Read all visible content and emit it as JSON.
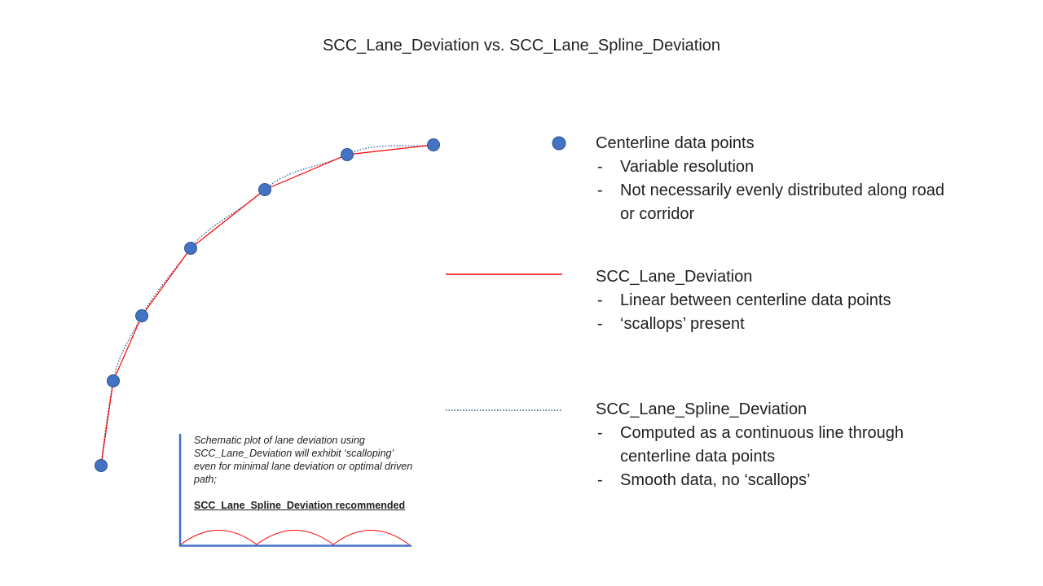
{
  "title": "SCC_Lane_Deviation vs. SCC_Lane_Spline_Deviation",
  "legend": {
    "points": {
      "heading": "Centerline data points",
      "bullets": [
        "Variable resolution",
        "Not necessarily evenly distributed along road or corridor"
      ]
    },
    "linear": {
      "heading": "SCC_Lane_Deviation",
      "bullets": [
        "Linear between centerline data points",
        "‘scallops’ present"
      ]
    },
    "spline": {
      "heading": "SCC_Lane_Spline_Deviation",
      "bullets": [
        "Computed as a continuous line through centerline data points",
        "Smooth data, no ‘scallops’"
      ]
    }
  },
  "note": {
    "body": "Schematic plot of lane deviation using SCC_Lane_Deviation will exhibit ‘scalloping’ even for minimal lane deviation or optimal driven path;",
    "recommendation": "SCC_Lane_Spline_Deviation recommended"
  },
  "colors": {
    "point_fill": "#4472c4",
    "point_stroke": "#2f528f",
    "linear_line": "#ff0000",
    "spline_line": "#2e5d8a",
    "axis": "#4472c4",
    "scallop": "#ff0000"
  }
}
